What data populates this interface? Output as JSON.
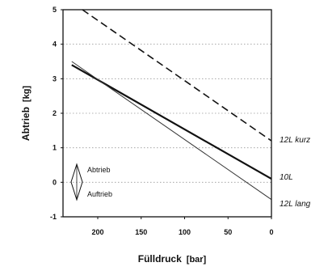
{
  "chart_data": {
    "type": "line",
    "title": "",
    "xlabel": "Fülldruck",
    "xunit": "[bar]",
    "ylabel": "Abtrieb",
    "yunit": "[kg]",
    "xlim": [
      240,
      0
    ],
    "x_reversed": true,
    "ylim": [
      -1,
      5
    ],
    "xticks": [
      "200",
      "150",
      "100",
      "50",
      "0"
    ],
    "xtick_values": [
      200,
      150,
      100,
      50,
      0
    ],
    "yticks": [
      "-1",
      "0",
      "1",
      "2",
      "3",
      "4",
      "5"
    ],
    "ytick_values": [
      -1,
      0,
      1,
      2,
      3,
      4,
      5
    ],
    "grid": "horizontal dotted",
    "series": [
      {
        "name": "12L kurz",
        "style": "dashed",
        "x": [
          232,
          0
        ],
        "y": [
          5.25,
          1.2
        ]
      },
      {
        "name": "10L",
        "style": "solid-thick",
        "x": [
          230,
          0
        ],
        "y": [
          3.4,
          0.1
        ]
      },
      {
        "name": "12L lang",
        "style": "solid-thin",
        "x": [
          230,
          0
        ],
        "y": [
          3.5,
          -0.5
        ]
      }
    ],
    "annotation": {
      "upper": "Abtrieb",
      "lower": "Auftrieb"
    }
  }
}
